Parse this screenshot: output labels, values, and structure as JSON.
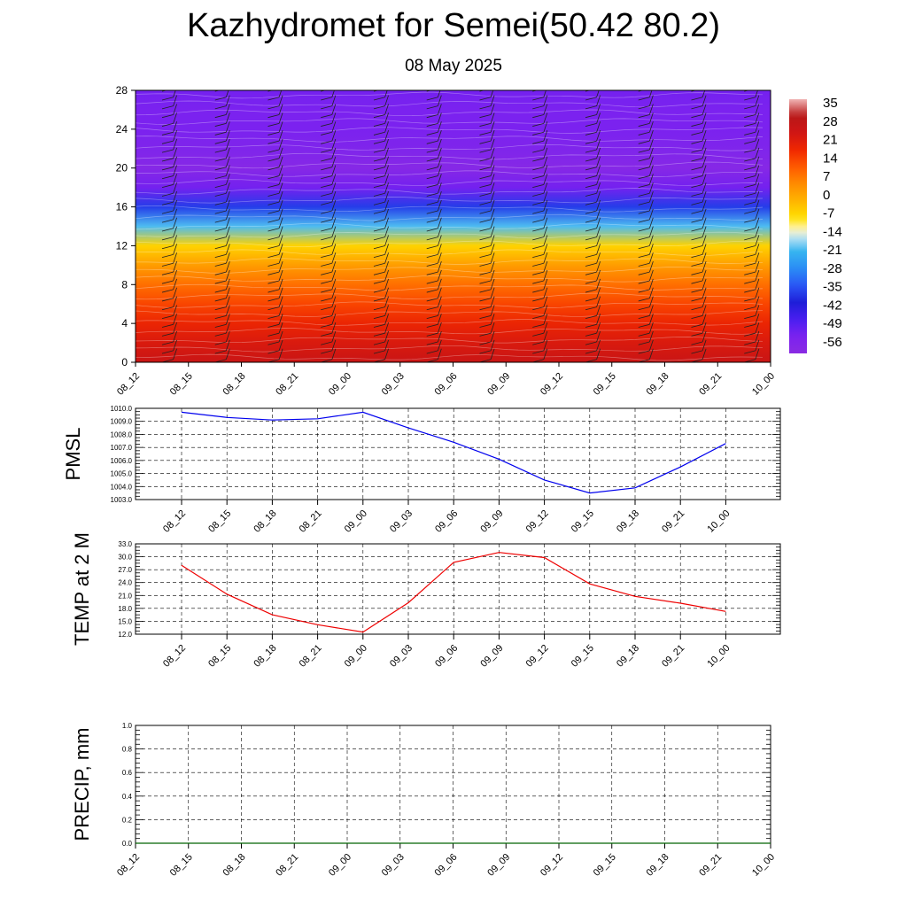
{
  "title": "Kazhydromet for Semei(50.42 80.2)",
  "subtitle": "08 May 2025",
  "chart_data": [
    {
      "type": "heatmap",
      "name": "cross-section",
      "ylim": [
        0,
        28
      ],
      "yticks": [
        "0",
        "4",
        "8",
        "12",
        "16",
        "20",
        "24",
        "28"
      ],
      "x_tick_labels": [
        "08_12",
        "08_15",
        "08_18",
        "08_21",
        "09_00",
        "09_03",
        "09_06",
        "09_09",
        "09_12",
        "09_15",
        "09_18",
        "09_21",
        "10_00"
      ],
      "colorbar_labels": [
        "35",
        "28",
        "21",
        "14",
        "7",
        "0",
        "-7",
        "-14",
        "-21",
        "-28",
        "-35",
        "-42",
        "-49",
        "-56"
      ],
      "colorbar_range": [
        -63,
        42
      ],
      "height_levels": [
        0,
        2,
        4,
        6,
        8,
        10,
        12,
        14,
        16,
        18,
        20,
        22,
        24,
        26,
        28
      ],
      "temperature_profile": [
        30,
        26,
        22,
        17,
        11,
        4,
        -5,
        -20,
        -38,
        -55,
        -61,
        -58,
        -56,
        -56,
        -55
      ],
      "grid": false
    },
    {
      "type": "line",
      "ylabel": "PMSL",
      "ylim": [
        1003,
        1010
      ],
      "yticks": [
        "1003.0",
        "1004.0",
        "1005.0",
        "1006.0",
        "1007.0",
        "1008.0",
        "1009.0",
        "1010.0"
      ],
      "categories": [
        "08_12",
        "08_15",
        "08_18",
        "08_21",
        "09_00",
        "09_03",
        "09_06",
        "09_09",
        "09_12",
        "09_15",
        "09_18",
        "09_21",
        "10_00"
      ],
      "values": [
        1009.7,
        1009.3,
        1009.1,
        1009.2,
        1009.7,
        1008.5,
        1007.4,
        1006.1,
        1004.5,
        1003.5,
        1003.9,
        1005.5,
        1007.3
      ],
      "color": "#0000ee",
      "grid": true
    },
    {
      "type": "line",
      "ylabel": "TEMP at 2 M",
      "ylim": [
        12,
        33
      ],
      "yticks": [
        "12.0",
        "15.0",
        "18.0",
        "21.0",
        "24.0",
        "27.0",
        "30.0",
        "33.0"
      ],
      "categories": [
        "08_12",
        "08_15",
        "08_18",
        "08_21",
        "09_00",
        "09_03",
        "09_06",
        "09_09",
        "09_12",
        "09_15",
        "09_18",
        "09_21",
        "10_00"
      ],
      "values": [
        28.0,
        21.3,
        16.5,
        14.2,
        12.5,
        19.3,
        28.7,
        31.0,
        29.8,
        23.7,
        20.8,
        19.2,
        17.3
      ],
      "color": "#ee0000",
      "grid": true
    },
    {
      "type": "line",
      "ylabel": "PRECIP, mm",
      "ylim": [
        0,
        1
      ],
      "yticks": [
        "0.0",
        "0.2",
        "0.4",
        "0.6",
        "0.8",
        "1.0"
      ],
      "categories": [
        "08_12",
        "08_15",
        "08_18",
        "08_21",
        "09_00",
        "09_03",
        "09_06",
        "09_09",
        "09_12",
        "09_15",
        "09_18",
        "09_21",
        "10_00"
      ],
      "values": [
        0,
        0,
        0,
        0,
        0,
        0,
        0,
        0,
        0,
        0,
        0,
        0,
        0
      ],
      "color": "#006400",
      "grid": true
    }
  ]
}
